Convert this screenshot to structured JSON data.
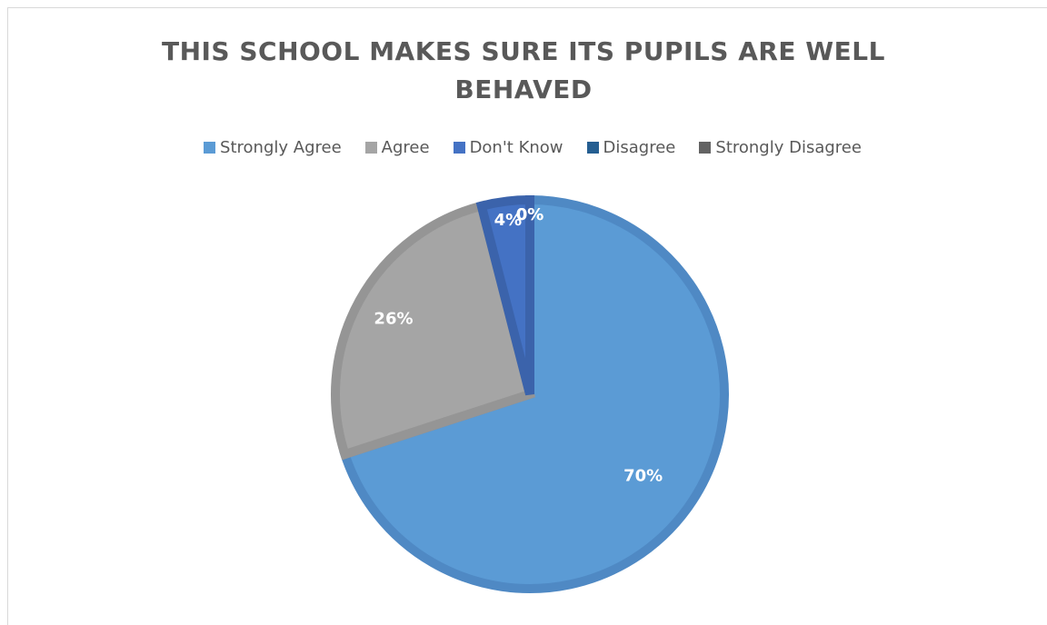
{
  "chart_data": {
    "type": "pie",
    "title": "THIS SCHOOL MAKES SURE ITS PUPILS ARE WELL BEHAVED",
    "title_lines": [
      "THIS SCHOOL MAKES SURE ITS PUPILS ARE WELL",
      "BEHAVED"
    ],
    "categories": [
      "Strongly Agree",
      "Agree",
      "Don't Know",
      "Disagree",
      "Strongly Disagree"
    ],
    "values": [
      70,
      26,
      4,
      0,
      0
    ],
    "labels": [
      "70%",
      "26%",
      "4%",
      "0%",
      "0%"
    ],
    "colors": [
      "#5b9bd5",
      "#a5a5a5",
      "#4472c4",
      "#255e91",
      "#636363"
    ],
    "border_colors": [
      "#4f89c4",
      "#959595",
      "#3b63ab",
      "#1f507d",
      "#555555"
    ],
    "legend_position": "top",
    "start_angle_deg": 0,
    "direction": "clockwise"
  }
}
